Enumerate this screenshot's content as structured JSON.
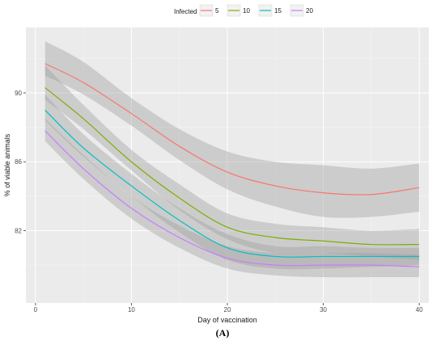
{
  "chart_data": {
    "type": "line",
    "xlabel": "Day of vaccination",
    "ylabel": "% of viable animals",
    "xlim": [
      -1,
      41
    ],
    "ylim": [
      77.8,
      93.8
    ],
    "x_ticks": [
      0,
      10,
      20,
      30,
      40
    ],
    "y_ticks": [
      82,
      86,
      90
    ],
    "grid": true,
    "legend_title": "Infected",
    "legend_placement": "top",
    "panel_label": "(A)",
    "colors": {
      "panel_bg": "#ebebeb",
      "grid_major": "#ffffff",
      "ribbon": "#9e9e9e"
    },
    "series": [
      {
        "name": "5",
        "color": "#F8766D",
        "x": [
          1,
          5,
          10,
          15,
          20,
          25,
          30,
          35,
          40
        ],
        "y": [
          91.7,
          90.6,
          88.8,
          86.9,
          85.4,
          84.6,
          84.2,
          84.1,
          84.5
        ],
        "lower": [
          91.0,
          89.9,
          88.1,
          86.1,
          84.4,
          83.4,
          82.8,
          82.8,
          83.1
        ],
        "upper": [
          93.0,
          91.8,
          89.7,
          87.9,
          86.6,
          86.0,
          85.8,
          85.6,
          85.9
        ]
      },
      {
        "name": "10",
        "color": "#7CAE00",
        "x": [
          1,
          5,
          10,
          15,
          20,
          25,
          30,
          35,
          40
        ],
        "y": [
          90.3,
          88.5,
          86.0,
          83.9,
          82.2,
          81.6,
          81.4,
          81.2,
          81.2
        ],
        "lower": [
          89.6,
          87.9,
          85.5,
          83.2,
          81.5,
          80.7,
          80.7,
          80.5,
          80.3
        ],
        "upper": [
          91.6,
          89.3,
          86.7,
          84.7,
          83.0,
          82.4,
          82.2,
          82.0,
          82.1
        ]
      },
      {
        "name": "15",
        "color": "#00BFC4",
        "x": [
          1,
          5,
          10,
          15,
          20,
          25,
          30,
          35,
          40
        ],
        "y": [
          89.0,
          86.8,
          84.6,
          82.6,
          81.0,
          80.5,
          80.5,
          80.5,
          80.5
        ],
        "lower": [
          88.4,
          86.3,
          84.0,
          81.9,
          80.3,
          79.8,
          79.8,
          79.9,
          80.0
        ],
        "upper": [
          89.9,
          87.6,
          85.3,
          83.3,
          81.8,
          81.1,
          81.1,
          81.0,
          81.0
        ]
      },
      {
        "name": "20",
        "color": "#C77CFF",
        "x": [
          1,
          5,
          10,
          15,
          20,
          25,
          30,
          35,
          40
        ],
        "y": [
          87.8,
          85.6,
          83.3,
          81.6,
          80.4,
          80.0,
          80.0,
          80.0,
          79.9
        ],
        "lower": [
          87.2,
          85.0,
          82.7,
          81.0,
          79.8,
          79.4,
          79.3,
          79.3,
          79.3
        ],
        "upper": [
          88.5,
          86.4,
          84.0,
          82.3,
          81.1,
          80.7,
          80.7,
          80.7,
          80.6
        ]
      }
    ]
  }
}
